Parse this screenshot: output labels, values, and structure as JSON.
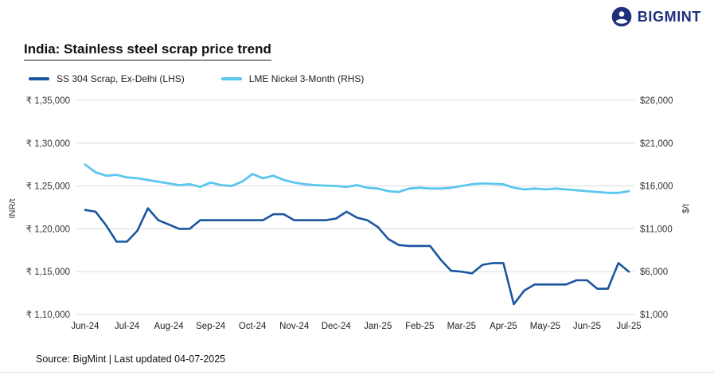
{
  "logo": {
    "text": "BIGMINT"
  },
  "header": {
    "title": "India: Stainless steel scrap price trend"
  },
  "footer": {
    "source": "Source: BigMint | Last updated 04-07-2025"
  },
  "chart_data": {
    "type": "line",
    "title": "India: Stainless steel scrap price trend",
    "grid": "horizontal",
    "legend_position": "top-left",
    "x_tick_labels": [
      "Jun-24",
      "Jul-24",
      "Aug-24",
      "Sep-24",
      "Oct-24",
      "Nov-24",
      "Dec-24",
      "Jan-25",
      "Feb-25",
      "Mar-25",
      "Apr-25",
      "May-25",
      "Jun-25",
      "Jul-25"
    ],
    "left_axis": {
      "label": "INR/t",
      "min": 110000,
      "max": 135000,
      "tick_values": [
        110000,
        115000,
        120000,
        125000,
        130000,
        135000
      ],
      "tick_labels": [
        "₹ 1,10,000",
        "₹ 1,15,000",
        "₹ 1,20,000",
        "₹ 1,25,000",
        "₹ 1,30,000",
        "₹ 1,35,000"
      ]
    },
    "right_axis": {
      "label": "$/t",
      "min": 1000,
      "max": 26000,
      "tick_values": [
        1000,
        6000,
        11000,
        16000,
        21000,
        26000
      ],
      "tick_labels": [
        "$1,000",
        "$6,000",
        "$11,000",
        "$16,000",
        "$21,000",
        "$26,000"
      ]
    },
    "series": [
      {
        "name": "SS 304 Scrap, Ex-Delhi (LHS)",
        "axis": "left",
        "color": "#1a56a0",
        "values": [
          122200,
          122000,
          120400,
          118500,
          118500,
          119800,
          122400,
          121000,
          120500,
          120000,
          120000,
          121000,
          121000,
          121000,
          121000,
          121000,
          121000,
          121000,
          121700,
          121700,
          121000,
          121000,
          121000,
          121000,
          121200,
          122000,
          121300,
          121000,
          120200,
          118800,
          118100,
          118000,
          118000,
          118000,
          116400,
          115100,
          115000,
          114800,
          115800,
          116000,
          116000,
          111200,
          112800,
          113500,
          113500,
          113500,
          113500,
          114000,
          114000,
          113000,
          113000,
          116000,
          115000
        ]
      },
      {
        "name": "LME Nickel 3-Month (RHS)",
        "axis": "right",
        "color": "#5bc6ee",
        "values": [
          18500,
          17600,
          17200,
          17300,
          17000,
          16900,
          16700,
          16500,
          16300,
          16100,
          16200,
          15900,
          16400,
          16100,
          16000,
          16500,
          17400,
          16900,
          17200,
          16700,
          16400,
          16200,
          16100,
          16050,
          16000,
          15900,
          16100,
          15800,
          15700,
          15400,
          15300,
          15700,
          15800,
          15700,
          15700,
          15800,
          16000,
          16200,
          16300,
          16250,
          16200,
          15800,
          15600,
          15700,
          15600,
          15700,
          15600,
          15500,
          15400,
          15300,
          15200,
          15200,
          15400
        ]
      }
    ]
  }
}
